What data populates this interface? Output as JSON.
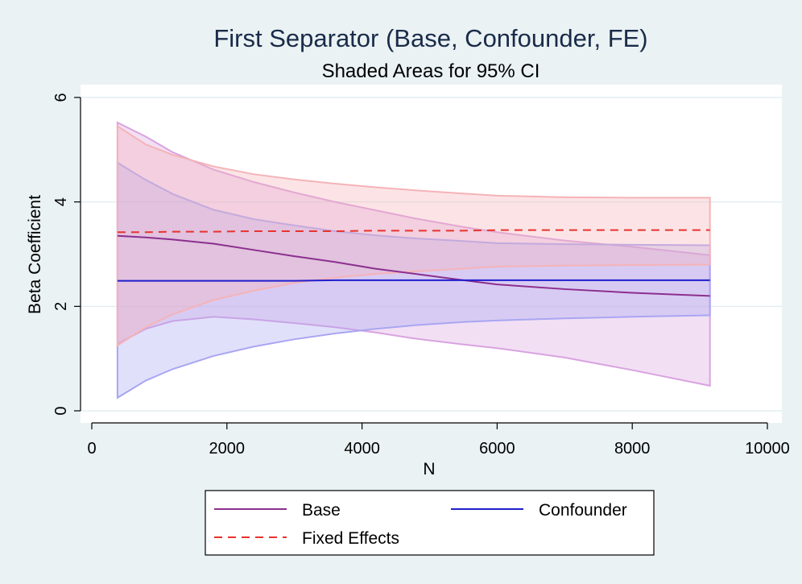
{
  "chart_data": {
    "type": "line",
    "title": "First Separator (Base, Confounder, FE)",
    "subtitle": "Shaded Areas for 95% CI",
    "xlabel": "N",
    "ylabel": "Beta Coefficient",
    "xlim": [
      0,
      10000
    ],
    "ylim": [
      0,
      6
    ],
    "xticks": [
      0,
      2000,
      4000,
      6000,
      8000,
      10000
    ],
    "yticks": [
      0,
      2,
      4,
      6
    ],
    "grid": true,
    "legend_position": "bottom",
    "series": [
      {
        "name": "Base",
        "color": "#8b2f8f",
        "band_color": "#d9a3e0",
        "dash": "solid",
        "x": [
          380,
          800,
          1200,
          1800,
          2400,
          3000,
          3600,
          4200,
          4800,
          5500,
          6000,
          7000,
          8000,
          9150
        ],
        "y": [
          3.35,
          3.32,
          3.28,
          3.2,
          3.08,
          2.96,
          2.85,
          2.72,
          2.62,
          2.5,
          2.42,
          2.33,
          2.26,
          2.2
        ],
        "lower": [
          1.28,
          1.57,
          1.72,
          1.8,
          1.75,
          1.68,
          1.6,
          1.5,
          1.38,
          1.27,
          1.2,
          1.02,
          0.78,
          0.48
        ],
        "upper": [
          5.52,
          5.25,
          4.95,
          4.62,
          4.38,
          4.18,
          4.0,
          3.84,
          3.68,
          3.52,
          3.42,
          3.26,
          3.14,
          2.98
        ]
      },
      {
        "name": "Confounder",
        "color": "#1f1fcc",
        "band_color": "#a9a6f2",
        "dash": "solid",
        "x": [
          380,
          800,
          1200,
          1800,
          2400,
          3000,
          3600,
          4200,
          4800,
          5500,
          6000,
          7000,
          8000,
          9150
        ],
        "y": [
          2.49,
          2.49,
          2.49,
          2.49,
          2.49,
          2.49,
          2.5,
          2.5,
          2.5,
          2.5,
          2.5,
          2.5,
          2.5,
          2.5
        ],
        "lower": [
          0.25,
          0.58,
          0.8,
          1.05,
          1.23,
          1.37,
          1.48,
          1.57,
          1.64,
          1.7,
          1.73,
          1.77,
          1.8,
          1.83
        ],
        "upper": [
          4.75,
          4.42,
          4.15,
          3.85,
          3.67,
          3.55,
          3.44,
          3.36,
          3.3,
          3.25,
          3.21,
          3.19,
          3.18,
          3.17
        ]
      },
      {
        "name": "Fixed Effects",
        "color": "#e8332f",
        "band_color": "#f5b3b8",
        "dash": "dashed",
        "x": [
          380,
          800,
          1200,
          1800,
          2400,
          3000,
          3600,
          4200,
          4800,
          5500,
          6000,
          7000,
          8000,
          9150
        ],
        "y": [
          3.42,
          3.42,
          3.43,
          3.43,
          3.44,
          3.44,
          3.44,
          3.45,
          3.45,
          3.45,
          3.46,
          3.46,
          3.46,
          3.46
        ],
        "lower": [
          1.25,
          1.6,
          1.85,
          2.12,
          2.3,
          2.45,
          2.55,
          2.62,
          2.67,
          2.72,
          2.76,
          2.78,
          2.79,
          2.8
        ],
        "upper": [
          5.45,
          5.1,
          4.9,
          4.68,
          4.53,
          4.43,
          4.35,
          4.28,
          4.22,
          4.16,
          4.12,
          4.09,
          4.08,
          4.08
        ]
      }
    ]
  }
}
